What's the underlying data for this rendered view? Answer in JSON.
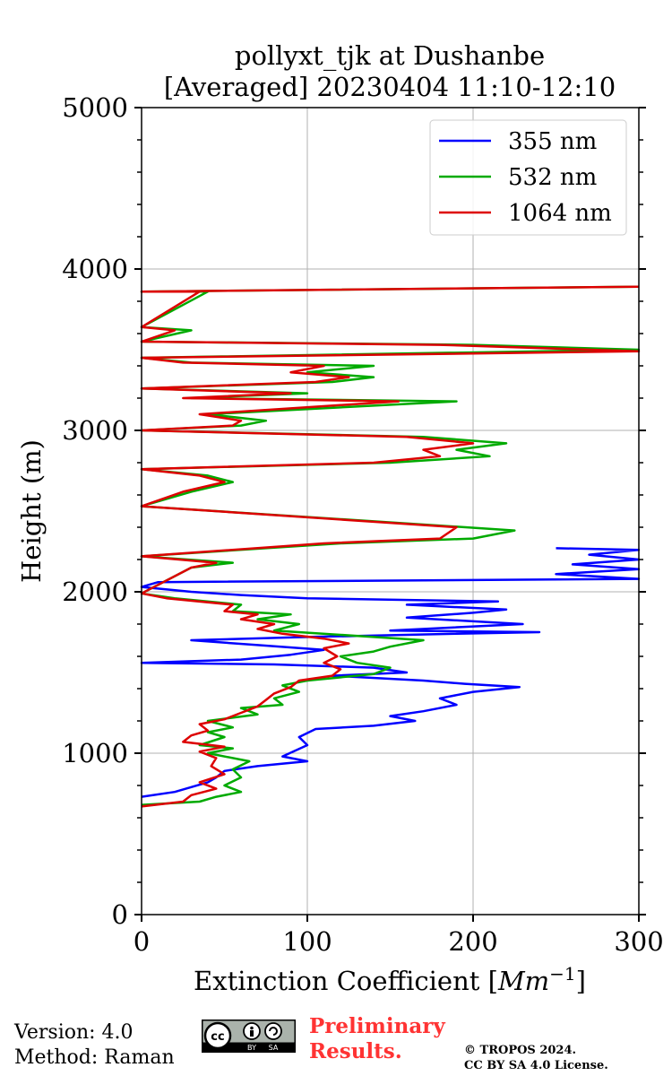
{
  "chart_data": {
    "type": "line",
    "title_line1": "pollyxt_tjk at Dushanbe",
    "title_line2": "[Averaged] 20230404 11:10-12:10",
    "xlabel": "Extinction Coefficient [",
    "xlabel_unit": "Mm",
    "xlabel_exp": "−1",
    "xlabel_close": "]",
    "ylabel": "Height (m)",
    "xlim": [
      0,
      300
    ],
    "ylim": [
      0,
      5000
    ],
    "x_ticks": [
      0,
      100,
      200,
      300
    ],
    "x_tick_labels": [
      "0",
      "100",
      "200",
      "300"
    ],
    "y_ticks": [
      0,
      1000,
      2000,
      3000,
      4000,
      5000
    ],
    "y_tick_labels": [
      "0",
      "1000",
      "2000",
      "3000",
      "4000",
      "5000"
    ],
    "grid": true,
    "legend_position": "top-right",
    "series": [
      {
        "name": "355 nm",
        "color": "#0000ff",
        "points": [
          [
            0,
            730
          ],
          [
            20,
            760
          ],
          [
            30,
            790
          ],
          [
            40,
            820
          ],
          [
            45,
            850
          ],
          [
            50,
            890
          ],
          [
            70,
            920
          ],
          [
            100,
            950
          ],
          [
            85,
            980
          ],
          [
            100,
            1050
          ],
          [
            95,
            1100
          ],
          [
            105,
            1150
          ],
          [
            140,
            1170
          ],
          [
            165,
            1200
          ],
          [
            150,
            1230
          ],
          [
            170,
            1260
          ],
          [
            190,
            1300
          ],
          [
            180,
            1340
          ],
          [
            200,
            1380
          ],
          [
            228,
            1410
          ],
          [
            195,
            1430
          ],
          [
            170,
            1450
          ],
          [
            115,
            1480
          ],
          [
            160,
            1500
          ],
          [
            140,
            1530
          ],
          [
            80,
            1550
          ],
          [
            0,
            1560
          ],
          [
            60,
            1580
          ],
          [
            90,
            1610
          ],
          [
            110,
            1640
          ],
          [
            70,
            1670
          ],
          [
            30,
            1700
          ],
          [
            100,
            1720
          ],
          [
            190,
            1740
          ],
          [
            240,
            1750
          ],
          [
            150,
            1760
          ],
          [
            230,
            1800
          ],
          [
            160,
            1840
          ],
          [
            200,
            1870
          ],
          [
            220,
            1890
          ],
          [
            160,
            1920
          ],
          [
            215,
            1940
          ],
          [
            100,
            1960
          ],
          [
            60,
            1980
          ],
          [
            30,
            2000
          ],
          [
            0,
            2030
          ],
          [
            10,
            2060
          ],
          [
            300,
            2080
          ],
          [
            250,
            2110
          ],
          [
            300,
            2140
          ],
          [
            260,
            2170
          ],
          [
            300,
            2200
          ],
          [
            270,
            2230
          ],
          [
            300,
            2260
          ],
          [
            250,
            2270
          ]
        ]
      },
      {
        "name": "532 nm",
        "color": "#00aa00",
        "points": [
          [
            0,
            680
          ],
          [
            35,
            700
          ],
          [
            45,
            730
          ],
          [
            60,
            760
          ],
          [
            50,
            800
          ],
          [
            60,
            850
          ],
          [
            55,
            900
          ],
          [
            65,
            950
          ],
          [
            40,
            1000
          ],
          [
            55,
            1030
          ],
          [
            35,
            1050
          ],
          [
            50,
            1100
          ],
          [
            40,
            1130
          ],
          [
            55,
            1160
          ],
          [
            40,
            1200
          ],
          [
            70,
            1240
          ],
          [
            60,
            1280
          ],
          [
            85,
            1300
          ],
          [
            80,
            1340
          ],
          [
            95,
            1380
          ],
          [
            85,
            1420
          ],
          [
            100,
            1450
          ],
          [
            140,
            1490
          ],
          [
            150,
            1530
          ],
          [
            130,
            1560
          ],
          [
            120,
            1600
          ],
          [
            140,
            1630
          ],
          [
            150,
            1660
          ],
          [
            170,
            1700
          ],
          [
            140,
            1720
          ],
          [
            80,
            1760
          ],
          [
            95,
            1800
          ],
          [
            70,
            1830
          ],
          [
            90,
            1860
          ],
          [
            55,
            1880
          ],
          [
            60,
            1920
          ],
          [
            20,
            1960
          ],
          [
            0,
            1990
          ],
          [
            30,
            2150
          ],
          [
            55,
            2180
          ],
          [
            0,
            2220
          ],
          [
            120,
            2300
          ],
          [
            200,
            2330
          ],
          [
            225,
            2380
          ],
          [
            0,
            2530
          ],
          [
            30,
            2620
          ],
          [
            55,
            2680
          ],
          [
            40,
            2720
          ],
          [
            0,
            2760
          ],
          [
            150,
            2800
          ],
          [
            210,
            2840
          ],
          [
            190,
            2880
          ],
          [
            220,
            2920
          ],
          [
            170,
            2960
          ],
          [
            0,
            3000
          ],
          [
            60,
            3030
          ],
          [
            75,
            3060
          ],
          [
            40,
            3100
          ],
          [
            190,
            3180
          ],
          [
            30,
            3200
          ],
          [
            100,
            3230
          ],
          [
            0,
            3260
          ],
          [
            115,
            3300
          ],
          [
            140,
            3330
          ],
          [
            100,
            3360
          ],
          [
            140,
            3400
          ],
          [
            30,
            3420
          ],
          [
            0,
            3450
          ],
          [
            300,
            3500
          ],
          [
            200,
            3530
          ],
          [
            0,
            3550
          ],
          [
            30,
            3620
          ],
          [
            0,
            3640
          ],
          [
            40,
            3860
          ],
          [
            0,
            3860
          ],
          [
            300,
            3890
          ]
        ]
      },
      {
        "name": "1064 nm",
        "color": "#dd0000",
        "points": [
          [
            0,
            670
          ],
          [
            25,
            700
          ],
          [
            30,
            740
          ],
          [
            45,
            780
          ],
          [
            35,
            820
          ],
          [
            50,
            870
          ],
          [
            42,
            920
          ],
          [
            45,
            970
          ],
          [
            35,
            1010
          ],
          [
            50,
            1040
          ],
          [
            25,
            1070
          ],
          [
            30,
            1110
          ],
          [
            40,
            1140
          ],
          [
            35,
            1180
          ],
          [
            50,
            1210
          ],
          [
            60,
            1250
          ],
          [
            70,
            1290
          ],
          [
            75,
            1330
          ],
          [
            80,
            1370
          ],
          [
            90,
            1410
          ],
          [
            95,
            1450
          ],
          [
            115,
            1480
          ],
          [
            120,
            1520
          ],
          [
            110,
            1560
          ],
          [
            118,
            1600
          ],
          [
            110,
            1650
          ],
          [
            125,
            1680
          ],
          [
            110,
            1710
          ],
          [
            85,
            1740
          ],
          [
            70,
            1770
          ],
          [
            80,
            1800
          ],
          [
            60,
            1830
          ],
          [
            70,
            1860
          ],
          [
            50,
            1880
          ],
          [
            55,
            1920
          ],
          [
            15,
            1960
          ],
          [
            0,
            1990
          ],
          [
            30,
            2150
          ],
          [
            45,
            2180
          ],
          [
            0,
            2220
          ],
          [
            110,
            2300
          ],
          [
            180,
            2330
          ],
          [
            190,
            2400
          ],
          [
            0,
            2530
          ],
          [
            25,
            2620
          ],
          [
            50,
            2680
          ],
          [
            35,
            2720
          ],
          [
            0,
            2760
          ],
          [
            140,
            2800
          ],
          [
            180,
            2840
          ],
          [
            170,
            2880
          ],
          [
            200,
            2920
          ],
          [
            160,
            2960
          ],
          [
            0,
            3000
          ],
          [
            55,
            3030
          ],
          [
            60,
            3060
          ],
          [
            35,
            3100
          ],
          [
            155,
            3180
          ],
          [
            25,
            3200
          ],
          [
            90,
            3230
          ],
          [
            0,
            3260
          ],
          [
            105,
            3300
          ],
          [
            125,
            3330
          ],
          [
            90,
            3360
          ],
          [
            110,
            3400
          ],
          [
            25,
            3420
          ],
          [
            0,
            3450
          ],
          [
            300,
            3490
          ],
          [
            180,
            3530
          ],
          [
            0,
            3550
          ],
          [
            20,
            3620
          ],
          [
            0,
            3640
          ],
          [
            35,
            3860
          ],
          [
            0,
            3860
          ],
          [
            300,
            3890
          ]
        ]
      }
    ]
  },
  "footer": {
    "version": "Version: 4.0",
    "method": "Method: Raman",
    "preliminary_line1": "Preliminary",
    "preliminary_line2": "Results.",
    "copyright_line1": "© TROPOS 2024.",
    "copyright_line2": "CC BY SA 4.0 License.",
    "cc_badge_text": "cc",
    "cc_by": "BY",
    "cc_sa": "SA"
  }
}
